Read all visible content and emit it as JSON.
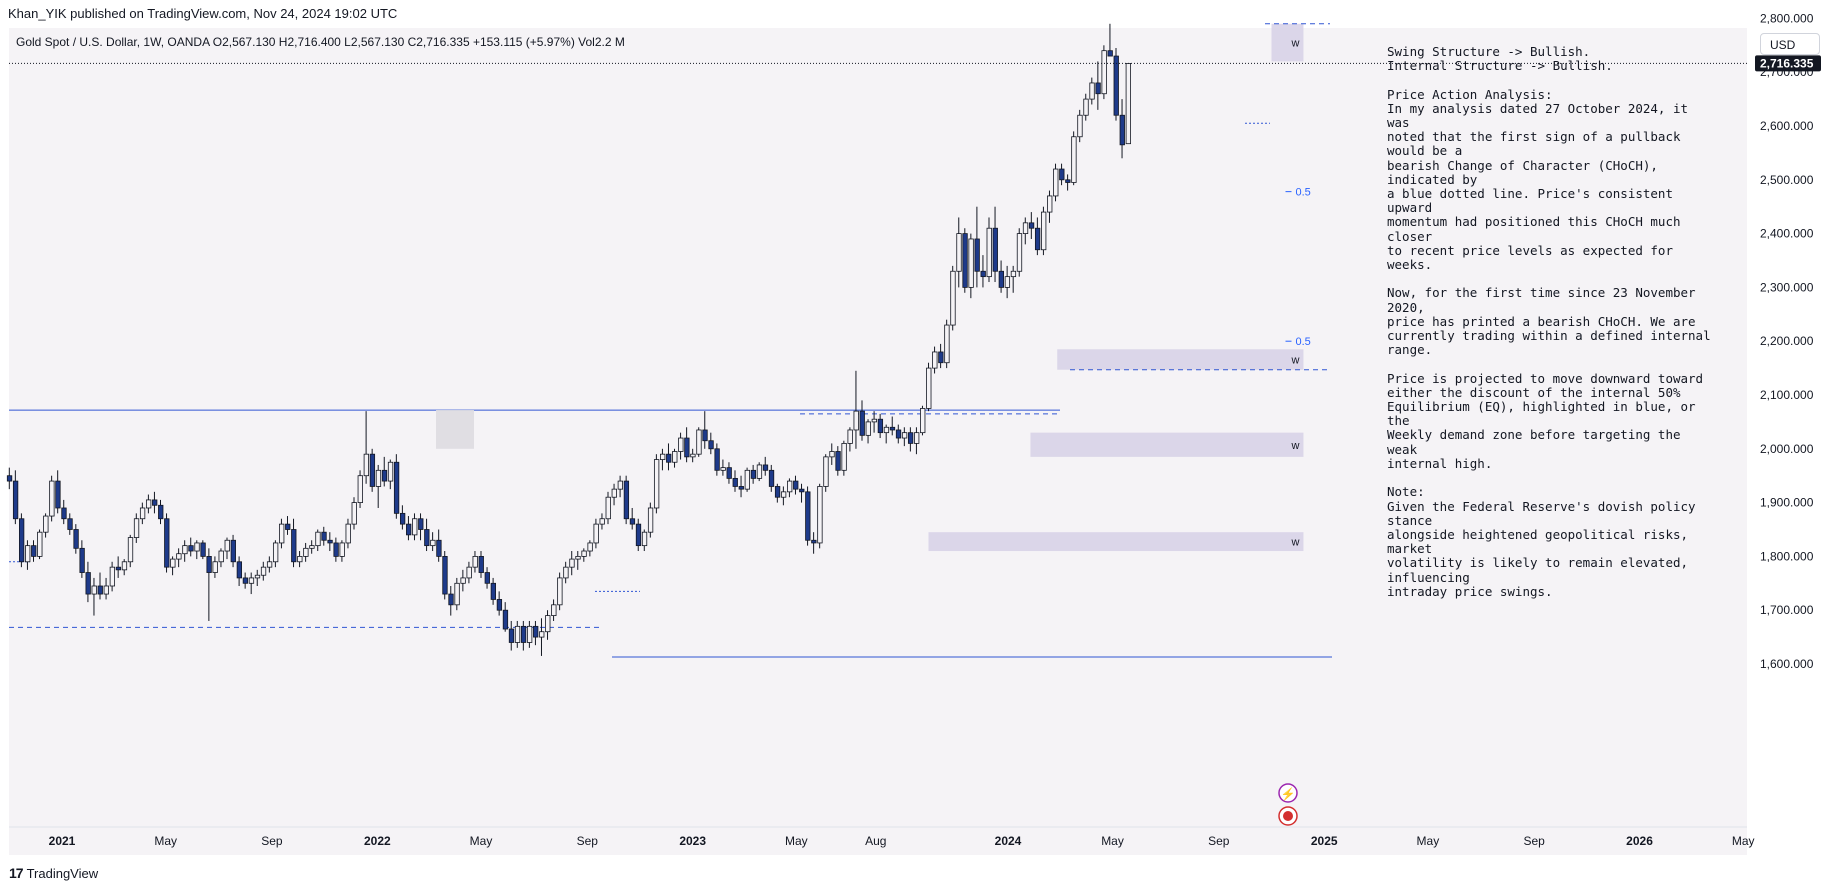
{
  "header": {
    "publisher_line": "Khan_YIK published on TradingView.com, Nov 24, 2024 19:02 UTC",
    "symbol_line": "Gold Spot / U.S. Dollar, 1W, OANDA  O2,567.130  H2,716.400  L2,567.130  C2,716.335  +153.115 (+5.97%)  Vol2.2 M"
  },
  "currency_label": "USD",
  "footer": {
    "logo_icon": "tradingview-logo-icon",
    "brand": "TradingView"
  },
  "analysis_text": "Swing Structure -> Bullish.\nInternal Structure -> Bullish.\n\nPrice Action Analysis:\nIn my analysis dated 27 October 2024, it was\nnoted that the first sign of a pullback would be a\nbearish Change of Character (CHoCH), indicated by\na blue dotted line. Price's consistent upward\nmomentum had positioned this CHoCH much closer\nto recent price levels as expected for weeks.\n\nNow, for the first time since 23 November 2020,\nprice has printed a bearish CHoCH. We are\ncurrently trading within a defined internal range.\n\nPrice is projected to move downward toward\neither the discount of the internal 50%\nEquilibrium (EQ), highlighted in blue, or the\nWeekly demand zone before targeting the weak\ninternal high.\n\nNote:\nGiven the Federal Reserve's dovish policy stance\nalongside heightened geopolitical risks, market\nvolatility is likely to remain elevated, influencing\nintraday price swings.",
  "colors": {
    "up": "#f5f3f6",
    "down": "#1e3a8a",
    "wick": "#131722",
    "zone": "#d6d0e6",
    "line": "#3056d3",
    "background": "#f5f3f6"
  },
  "chart_data": {
    "type": "candlestick",
    "symbol": "Gold Spot / U.S. Dollar",
    "interval": "1W",
    "ylim": [
      1520,
      2870
    ],
    "y_ticks": [
      1600,
      1700,
      1800,
      1900,
      2000,
      2100,
      2200,
      2300,
      2400,
      2500,
      2600,
      2700,
      2800
    ],
    "y_tick_labels": [
      "1,600.000",
      "1,700.000",
      "1,800.000",
      "1,900.000",
      "2,000.000",
      "2,100.000",
      "2,200.000",
      "2,300.000",
      "2,400.000",
      "2,500.000",
      "2,600.000",
      "2,700.000",
      "2,800.000"
    ],
    "last_price": 2716.335,
    "last_price_label": "2,716.335",
    "x_labels": [
      {
        "text": "2021",
        "date": "2021-01-01",
        "bold": true
      },
      {
        "text": "May",
        "date": "2021-05-01"
      },
      {
        "text": "Sep",
        "date": "2021-09-01"
      },
      {
        "text": "2022",
        "date": "2022-01-01",
        "bold": true
      },
      {
        "text": "May",
        "date": "2022-05-01"
      },
      {
        "text": "Sep",
        "date": "2022-09-01"
      },
      {
        "text": "2023",
        "date": "2023-01-01",
        "bold": true
      },
      {
        "text": "May",
        "date": "2023-05-01"
      },
      {
        "text": "Aug",
        "date": "2023-08-01"
      },
      {
        "text": "2024",
        "date": "2024-01-01",
        "bold": true
      },
      {
        "text": "May",
        "date": "2024-05-01"
      },
      {
        "text": "Sep",
        "date": "2024-09-01"
      },
      {
        "text": "2025",
        "date": "2025-01-01",
        "bold": true
      },
      {
        "text": "May",
        "date": "2025-05-01"
      },
      {
        "text": "Sep",
        "date": "2025-09-01"
      },
      {
        "text": "2026",
        "date": "2026-01-01",
        "bold": true
      },
      {
        "text": "May",
        "date": "2026-05-01"
      }
    ],
    "demand_zones": [
      {
        "label": "w",
        "from_date": "2024-11-01",
        "to_date": "2024-12-08",
        "top": 2790,
        "bottom": 2720
      },
      {
        "label": "w",
        "from_date": "2024-02-27",
        "to_date": "2024-12-08",
        "top": 2185,
        "bottom": 2147
      },
      {
        "label": "w",
        "from_date": "2024-01-27",
        "to_date": "2024-12-08",
        "top": 2030,
        "bottom": 1985
      },
      {
        "label": "w",
        "from_date": "2023-10-01",
        "to_date": "2024-12-08",
        "top": 1845,
        "bottom": 1810
      }
    ],
    "eq_markers": [
      {
        "label": "0.5",
        "date": "2024-12-15",
        "price": 2478
      },
      {
        "label": "0.5",
        "date": "2024-12-15",
        "price": 2200
      }
    ],
    "candles": [
      [
        1950,
        1965,
        1925,
        1940
      ],
      [
        1940,
        1960,
        1860,
        1870
      ],
      [
        1870,
        1880,
        1780,
        1790
      ],
      [
        1790,
        1830,
        1775,
        1820
      ],
      [
        1820,
        1830,
        1790,
        1800
      ],
      [
        1800,
        1850,
        1795,
        1845
      ],
      [
        1845,
        1880,
        1835,
        1875
      ],
      [
        1875,
        1950,
        1865,
        1940
      ],
      [
        1940,
        1960,
        1880,
        1890
      ],
      [
        1890,
        1905,
        1860,
        1870
      ],
      [
        1870,
        1880,
        1840,
        1850
      ],
      [
        1850,
        1860,
        1805,
        1815
      ],
      [
        1815,
        1830,
        1760,
        1770
      ],
      [
        1770,
        1790,
        1715,
        1730
      ],
      [
        1730,
        1760,
        1690,
        1745
      ],
      [
        1745,
        1770,
        1720,
        1730
      ],
      [
        1730,
        1760,
        1720,
        1745
      ],
      [
        1745,
        1790,
        1735,
        1780
      ],
      [
        1780,
        1800,
        1760,
        1775
      ],
      [
        1775,
        1795,
        1765,
        1790
      ],
      [
        1790,
        1840,
        1780,
        1835
      ],
      [
        1835,
        1880,
        1825,
        1870
      ],
      [
        1870,
        1900,
        1860,
        1890
      ],
      [
        1890,
        1915,
        1880,
        1905
      ],
      [
        1905,
        1920,
        1880,
        1895
      ],
      [
        1895,
        1905,
        1860,
        1870
      ],
      [
        1870,
        1880,
        1770,
        1780
      ],
      [
        1780,
        1800,
        1765,
        1795
      ],
      [
        1795,
        1815,
        1780,
        1805
      ],
      [
        1805,
        1830,
        1790,
        1820
      ],
      [
        1820,
        1835,
        1800,
        1810
      ],
      [
        1810,
        1830,
        1795,
        1825
      ],
      [
        1825,
        1830,
        1795,
        1800
      ],
      [
        1800,
        1815,
        1680,
        1770
      ],
      [
        1770,
        1800,
        1760,
        1790
      ],
      [
        1790,
        1815,
        1780,
        1810
      ],
      [
        1810,
        1835,
        1795,
        1830
      ],
      [
        1830,
        1840,
        1780,
        1790
      ],
      [
        1790,
        1800,
        1745,
        1760
      ],
      [
        1760,
        1770,
        1740,
        1750
      ],
      [
        1750,
        1770,
        1730,
        1760
      ],
      [
        1760,
        1775,
        1745,
        1765
      ],
      [
        1765,
        1790,
        1755,
        1780
      ],
      [
        1780,
        1800,
        1770,
        1790
      ],
      [
        1790,
        1830,
        1780,
        1825
      ],
      [
        1825,
        1870,
        1815,
        1860
      ],
      [
        1860,
        1875,
        1840,
        1850
      ],
      [
        1850,
        1870,
        1780,
        1790
      ],
      [
        1790,
        1810,
        1780,
        1800
      ],
      [
        1800,
        1825,
        1790,
        1815
      ],
      [
        1815,
        1830,
        1805,
        1820
      ],
      [
        1820,
        1850,
        1810,
        1845
      ],
      [
        1845,
        1855,
        1820,
        1830
      ],
      [
        1830,
        1845,
        1810,
        1825
      ],
      [
        1825,
        1835,
        1790,
        1800
      ],
      [
        1800,
        1830,
        1790,
        1825
      ],
      [
        1825,
        1870,
        1815,
        1860
      ],
      [
        1860,
        1910,
        1850,
        1900
      ],
      [
        1900,
        1960,
        1890,
        1950
      ],
      [
        1950,
        2070,
        1935,
        1990
      ],
      [
        1990,
        2000,
        1920,
        1930
      ],
      [
        1930,
        1970,
        1890,
        1960
      ],
      [
        1960,
        1985,
        1930,
        1940
      ],
      [
        1940,
        1980,
        1925,
        1975
      ],
      [
        1975,
        1990,
        1870,
        1880
      ],
      [
        1880,
        1895,
        1850,
        1860
      ],
      [
        1860,
        1875,
        1830,
        1840
      ],
      [
        1840,
        1880,
        1830,
        1870
      ],
      [
        1870,
        1880,
        1830,
        1850
      ],
      [
        1850,
        1870,
        1810,
        1820
      ],
      [
        1820,
        1845,
        1810,
        1830
      ],
      [
        1830,
        1850,
        1790,
        1800
      ],
      [
        1800,
        1810,
        1720,
        1730
      ],
      [
        1730,
        1745,
        1690,
        1710
      ],
      [
        1710,
        1760,
        1700,
        1750
      ],
      [
        1750,
        1775,
        1735,
        1760
      ],
      [
        1760,
        1790,
        1750,
        1780
      ],
      [
        1780,
        1810,
        1770,
        1800
      ],
      [
        1800,
        1810,
        1760,
        1770
      ],
      [
        1770,
        1780,
        1740,
        1750
      ],
      [
        1750,
        1760,
        1710,
        1720
      ],
      [
        1720,
        1735,
        1690,
        1700
      ],
      [
        1700,
        1715,
        1660,
        1665
      ],
      [
        1665,
        1680,
        1625,
        1640
      ],
      [
        1640,
        1680,
        1630,
        1670
      ],
      [
        1670,
        1680,
        1625,
        1640
      ],
      [
        1640,
        1680,
        1630,
        1670
      ],
      [
        1670,
        1680,
        1635,
        1650
      ],
      [
        1650,
        1685,
        1615,
        1660
      ],
      [
        1660,
        1700,
        1645,
        1690
      ],
      [
        1690,
        1720,
        1680,
        1710
      ],
      [
        1710,
        1770,
        1700,
        1760
      ],
      [
        1760,
        1790,
        1750,
        1780
      ],
      [
        1780,
        1810,
        1765,
        1795
      ],
      [
        1795,
        1810,
        1775,
        1800
      ],
      [
        1800,
        1815,
        1790,
        1810
      ],
      [
        1810,
        1830,
        1800,
        1825
      ],
      [
        1825,
        1870,
        1815,
        1860
      ],
      [
        1860,
        1880,
        1850,
        1870
      ],
      [
        1870,
        1920,
        1860,
        1910
      ],
      [
        1910,
        1935,
        1895,
        1925
      ],
      [
        1925,
        1950,
        1910,
        1940
      ],
      [
        1940,
        1950,
        1860,
        1870
      ],
      [
        1870,
        1890,
        1850,
        1860
      ],
      [
        1860,
        1870,
        1810,
        1820
      ],
      [
        1820,
        1850,
        1810,
        1845
      ],
      [
        1845,
        1900,
        1835,
        1890
      ],
      [
        1890,
        1990,
        1880,
        1980
      ],
      [
        1980,
        2000,
        1960,
        1990
      ],
      [
        1990,
        2010,
        1960,
        1975
      ],
      [
        1975,
        2000,
        1965,
        1995
      ],
      [
        1995,
        2030,
        1980,
        2020
      ],
      [
        2020,
        2040,
        1975,
        1985
      ],
      [
        1985,
        2000,
        1975,
        1990
      ],
      [
        1990,
        2040,
        1985,
        2035
      ],
      [
        2035,
        2070,
        2000,
        2015
      ],
      [
        2015,
        2030,
        1990,
        2000
      ],
      [
        2000,
        2010,
        1950,
        1960
      ],
      [
        1960,
        1980,
        1950,
        1965
      ],
      [
        1965,
        1975,
        1935,
        1945
      ],
      [
        1945,
        1960,
        1920,
        1930
      ],
      [
        1930,
        1950,
        1910,
        1925
      ],
      [
        1925,
        1965,
        1920,
        1960
      ],
      [
        1960,
        1970,
        1935,
        1945
      ],
      [
        1945,
        1975,
        1940,
        1970
      ],
      [
        1970,
        1985,
        1950,
        1960
      ],
      [
        1960,
        1970,
        1920,
        1930
      ],
      [
        1930,
        1935,
        1900,
        1910
      ],
      [
        1910,
        1930,
        1895,
        1920
      ],
      [
        1920,
        1945,
        1910,
        1940
      ],
      [
        1940,
        1950,
        1915,
        1925
      ],
      [
        1925,
        1935,
        1900,
        1920
      ],
      [
        1920,
        1930,
        1820,
        1830
      ],
      [
        1830,
        1845,
        1805,
        1825
      ],
      [
        1825,
        1935,
        1815,
        1930
      ],
      [
        1930,
        1990,
        1920,
        1985
      ],
      [
        1985,
        2010,
        1970,
        1995
      ],
      [
        1995,
        2005,
        1950,
        1960
      ],
      [
        1960,
        2015,
        1950,
        2010
      ],
      [
        2010,
        2040,
        1995,
        2035
      ],
      [
        2035,
        2145,
        2000,
        2070
      ],
      [
        2070,
        2090,
        2015,
        2025
      ],
      [
        2025,
        2055,
        2010,
        2050
      ],
      [
        2050,
        2070,
        2030,
        2055
      ],
      [
        2055,
        2065,
        2020,
        2030
      ],
      [
        2030,
        2045,
        2010,
        2040
      ],
      [
        2040,
        2060,
        2025,
        2035
      ],
      [
        2035,
        2045,
        2010,
        2020
      ],
      [
        2020,
        2040,
        2005,
        2030
      ],
      [
        2030,
        2040,
        1995,
        2010
      ],
      [
        2010,
        2040,
        1990,
        2030
      ],
      [
        2030,
        2080,
        2025,
        2075
      ],
      [
        2075,
        2160,
        2070,
        2150
      ],
      [
        2150,
        2190,
        2140,
        2180
      ],
      [
        2180,
        2195,
        2150,
        2160
      ],
      [
        2160,
        2240,
        2150,
        2230
      ],
      [
        2230,
        2340,
        2220,
        2330
      ],
      [
        2330,
        2430,
        2300,
        2400
      ],
      [
        2400,
        2410,
        2290,
        2300
      ],
      [
        2300,
        2400,
        2280,
        2390
      ],
      [
        2390,
        2450,
        2300,
        2330
      ],
      [
        2330,
        2360,
        2300,
        2320
      ],
      [
        2320,
        2430,
        2310,
        2410
      ],
      [
        2410,
        2450,
        2310,
        2330
      ],
      [
        2330,
        2350,
        2290,
        2300
      ],
      [
        2300,
        2340,
        2280,
        2320
      ],
      [
        2320,
        2340,
        2290,
        2330
      ],
      [
        2330,
        2410,
        2320,
        2400
      ],
      [
        2400,
        2430,
        2380,
        2420
      ],
      [
        2420,
        2440,
        2390,
        2410
      ],
      [
        2410,
        2430,
        2360,
        2370
      ],
      [
        2370,
        2450,
        2360,
        2440
      ],
      [
        2440,
        2480,
        2420,
        2470
      ],
      [
        2470,
        2530,
        2460,
        2520
      ],
      [
        2520,
        2530,
        2490,
        2500
      ],
      [
        2500,
        2510,
        2480,
        2495
      ],
      [
        2495,
        2590,
        2490,
        2580
      ],
      [
        2580,
        2630,
        2570,
        2620
      ],
      [
        2620,
        2660,
        2610,
        2650
      ],
      [
        2650,
        2690,
        2640,
        2680
      ],
      [
        2680,
        2720,
        2630,
        2660
      ],
      [
        2660,
        2750,
        2650,
        2740
      ],
      [
        2740,
        2790,
        2730,
        2730
      ],
      [
        2730,
        2745,
        2610,
        2620
      ],
      [
        2620,
        2650,
        2540,
        2565
      ],
      [
        2567.13,
        2716.4,
        2567.13,
        2716.335
      ]
    ]
  }
}
